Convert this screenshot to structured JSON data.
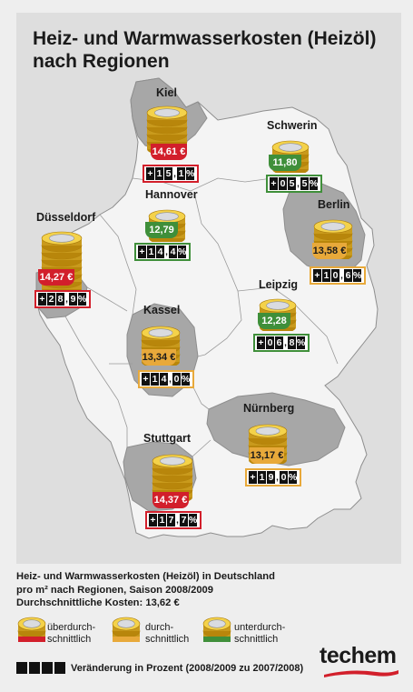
{
  "title_line1": "Heiz- und Warmwasserkosten (Heizöl)",
  "title_line2": "nach Regionen",
  "colors": {
    "above_average": "#d21f2b",
    "average": "#e8a93a",
    "below_average": "#3f8f3a",
    "region_highlight": "#9a9a9a",
    "land": "#f4f4f4"
  },
  "cities": [
    {
      "name": "Kiel",
      "price": "14,61 €",
      "change": [
        "+",
        "1",
        "5",
        ",",
        "1",
        "%"
      ],
      "category": "red"
    },
    {
      "name": "Schwerin",
      "price": "11,80 €",
      "change": [
        "+",
        "0",
        "5",
        ",",
        "5",
        "%"
      ],
      "category": "green"
    },
    {
      "name": "Hannover",
      "price": "12,79 €",
      "change": [
        "+",
        "1",
        "4",
        ",",
        "4",
        "%"
      ],
      "category": "green"
    },
    {
      "name": "Berlin",
      "price": "13,58 €",
      "change": [
        "+",
        "1",
        "0",
        ",",
        "6",
        "%"
      ],
      "category": "yellow"
    },
    {
      "name": "Düsseldorf",
      "price": "14,27 €",
      "change": [
        "+",
        "2",
        "8",
        ",",
        "9",
        "%"
      ],
      "category": "red"
    },
    {
      "name": "Leipzig",
      "price": "12,28 €",
      "change": [
        "+",
        "0",
        "6",
        ",",
        "8",
        "%"
      ],
      "category": "green"
    },
    {
      "name": "Kassel",
      "price": "13,34 €",
      "change": [
        "+",
        "1",
        "4",
        ",",
        "0",
        "%"
      ],
      "category": "yellow"
    },
    {
      "name": "Nürnberg",
      "price": "13,17 €",
      "change": [
        "+",
        "1",
        "9",
        ",",
        "0",
        "%"
      ],
      "category": "yellow"
    },
    {
      "name": "Stuttgart",
      "price": "14,37 €",
      "change": [
        "+",
        "1",
        "7",
        ",",
        "7",
        "%"
      ],
      "category": "red"
    }
  ],
  "legend": {
    "line1": "Heiz- und Warmwasserkosten (Heizöl) in Deutschland",
    "line2": "pro m² nach Regionen, Saison 2008/2009",
    "line3": "Durchschnittliche Kosten: 13,62 €",
    "above_line1": "überdurch-",
    "above_line2": "schnittlich",
    "avg_line1": "durch-",
    "avg_line2": "schnittlich",
    "below_line1": "unterdurch-",
    "below_line2": "schnittlich",
    "change_note": "Veränderung in Prozent (2008/2009 zu 2007/2008)"
  },
  "logo": "techem"
}
